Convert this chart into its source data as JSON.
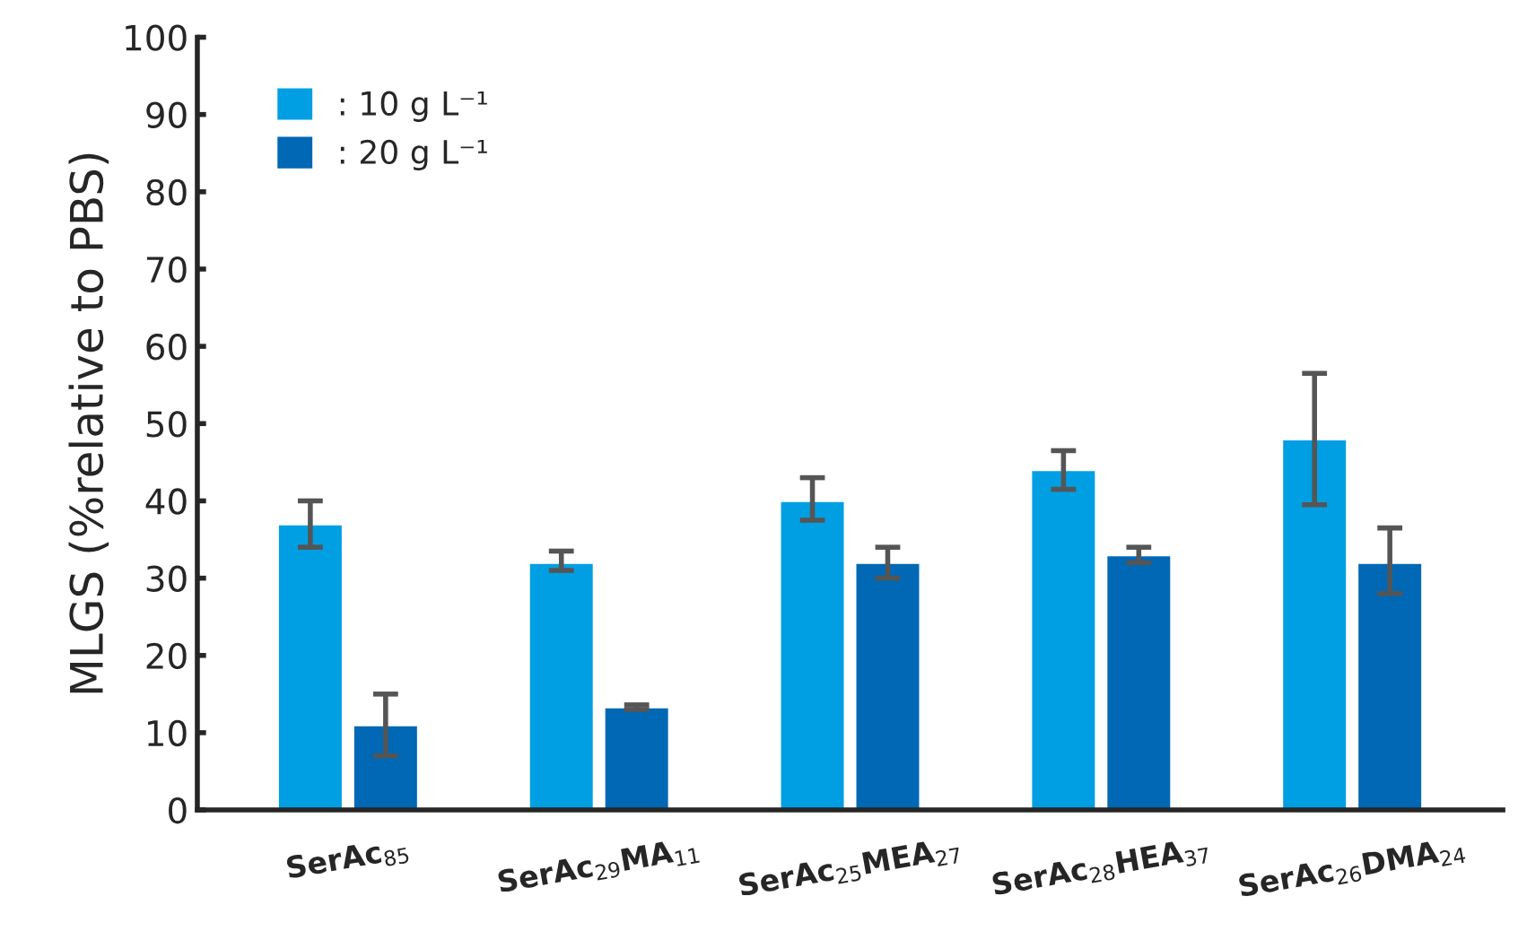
{
  "chart_data": {
    "type": "bar",
    "ylabel": "MLGS (%relative to PBS)",
    "categories": [
      "SerAc$_{85}$",
      "SerAc$_{29}$MA$_{11}$",
      "SerAc$_{25}$MEA$_{27}$",
      "SerAc$_{28}$HEA$_{37}$",
      "SerAc$_{26}$DMA$_{24}$"
    ],
    "series": [
      {
        "name": ": 10 g L⁻¹",
        "color": "#009fe3",
        "values": [
          37,
          32,
          40,
          44,
          48
        ],
        "errors": [
          [
            34,
            40
          ],
          [
            31,
            33.5
          ],
          [
            37.5,
            43
          ],
          [
            41.5,
            46.5
          ],
          [
            39.5,
            56.5
          ]
        ]
      },
      {
        "name": ": 20 g L⁻¹",
        "color": "#0068b4",
        "values": [
          11,
          13.3,
          32,
          33,
          32
        ],
        "errors": [
          [
            7,
            15
          ],
          [
            13,
            13.6
          ],
          [
            30,
            34
          ],
          [
            32,
            34
          ],
          [
            28,
            36.5
          ]
        ]
      }
    ],
    "ylim": [
      0,
      100
    ],
    "yticks": [
      0,
      10,
      20,
      30,
      40,
      50,
      60,
      70,
      80,
      90,
      100
    ],
    "grid": false,
    "legend": "top left"
  }
}
